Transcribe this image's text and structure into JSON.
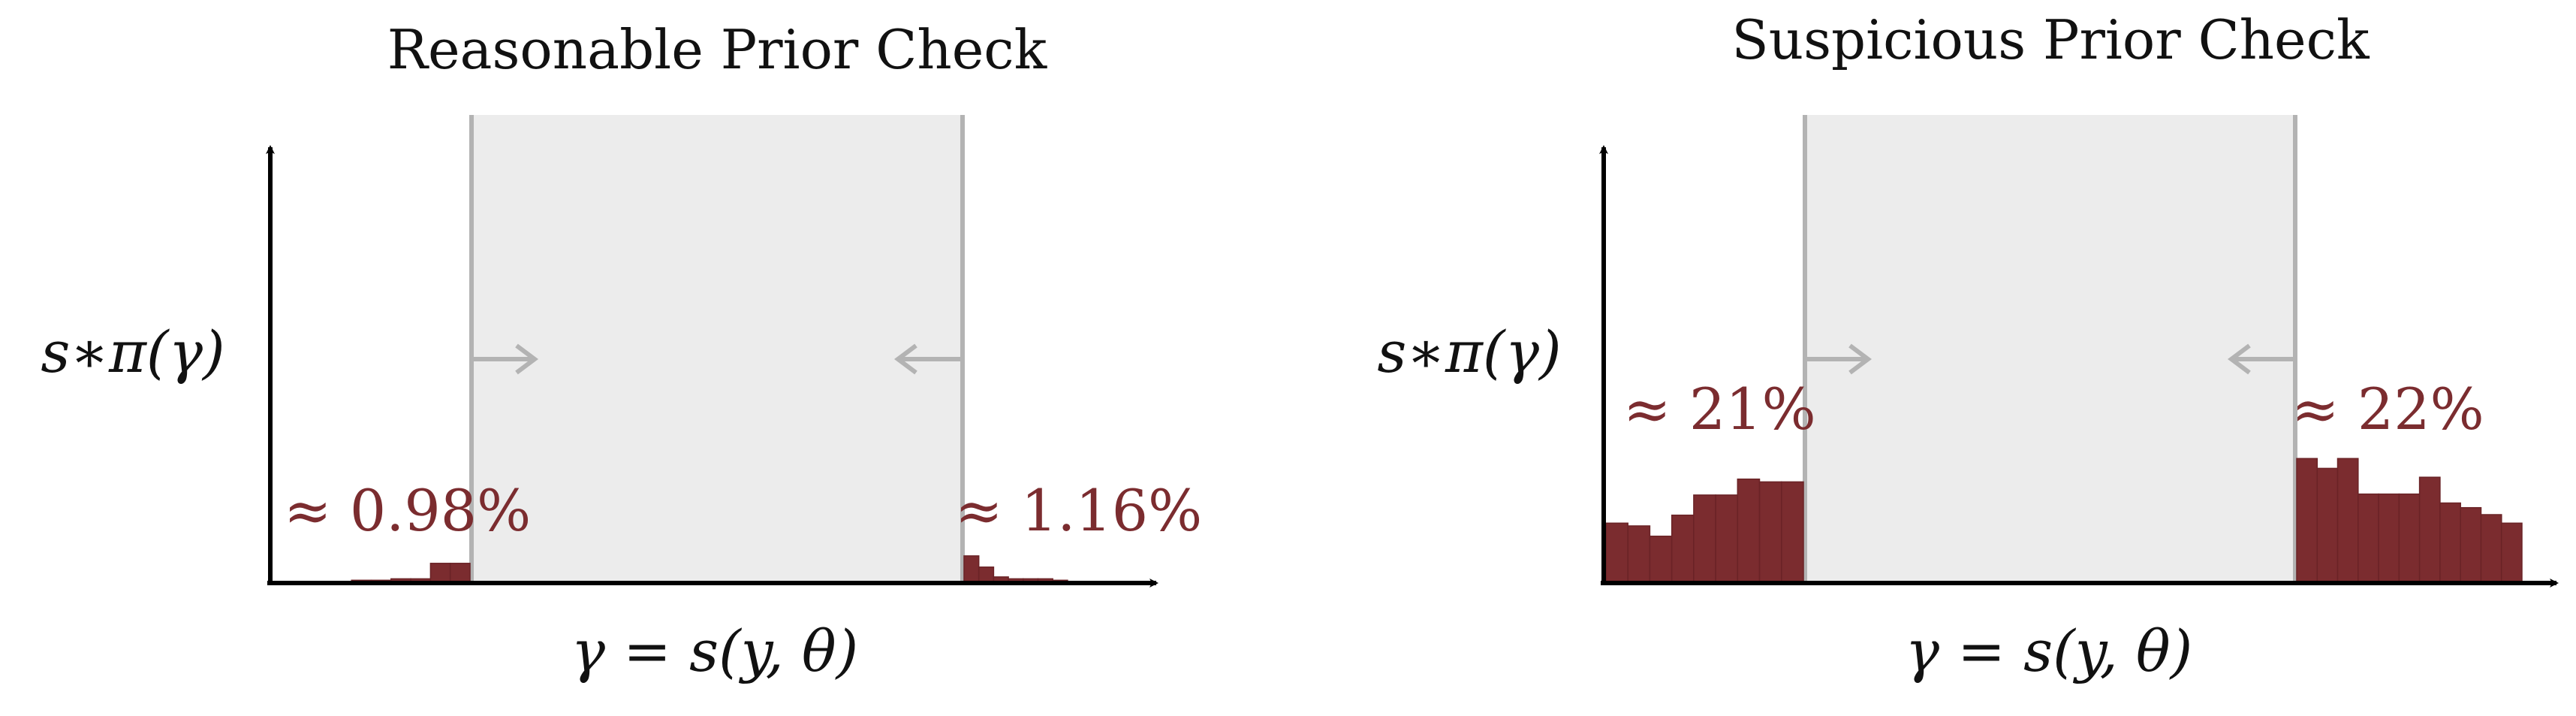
{
  "colors": {
    "bar": "#7b2c2f",
    "bar_edge": "#6a2326",
    "band_fill": "#ececec",
    "band_line": "#b3b3b3",
    "arrow": "#b3b3b3",
    "axis": "#000000",
    "annotation": "#7b2c2f"
  },
  "panels": [
    {
      "title": "Reasonable Prior Check",
      "ylabel": "s∗π(γ)",
      "xlabel": "γ = s(y, θ)",
      "left_tail_label": "≈ 0.98%",
      "right_tail_label": "≈ 1.16%"
    },
    {
      "title": "Suspicious Prior Check",
      "ylabel": "s∗π(γ)",
      "xlabel": "γ = s(y, θ)",
      "left_tail_label": "≈ 21%",
      "right_tail_label": "≈ 22%"
    }
  ],
  "chart_data": [
    {
      "type": "bar",
      "title": "Reasonable Prior Check",
      "xlabel": "γ = s(y, θ)",
      "ylabel": "s∗π(γ)",
      "grid": false,
      "ylim": [
        0,
        1
      ],
      "shaded_interval": [
        0.22,
        0.78
      ],
      "left_tail": {
        "label": "≈ 0.98%",
        "values": [
          0,
          0,
          0,
          0,
          0.006,
          0.006,
          0.009,
          0.009,
          0.042,
          0.042
        ]
      },
      "right_tail": {
        "label": "≈ 1.16%",
        "values": [
          0.058,
          0.034,
          0.013,
          0.009,
          0.009,
          0.009,
          0.006,
          0,
          0,
          0,
          0,
          0,
          0
        ]
      }
    },
    {
      "type": "bar",
      "title": "Suspicious Prior Check",
      "xlabel": "γ = s(y, θ)",
      "ylabel": "s∗π(γ)",
      "grid": false,
      "ylim": [
        0,
        1
      ],
      "shaded_interval": [
        0.22,
        0.78
      ],
      "left_tail": {
        "label": "≈ 21%",
        "values": [
          0.128,
          0.122,
          0.1,
          0.145,
          0.188,
          0.188,
          0.222,
          0.216,
          0.216
        ]
      },
      "right_tail": {
        "label": "≈ 22%",
        "values": [
          0.266,
          0.245,
          0.266,
          0.19,
          0.19,
          0.19,
          0.226,
          0.171,
          0.161,
          0.146,
          0.128
        ]
      }
    }
  ]
}
